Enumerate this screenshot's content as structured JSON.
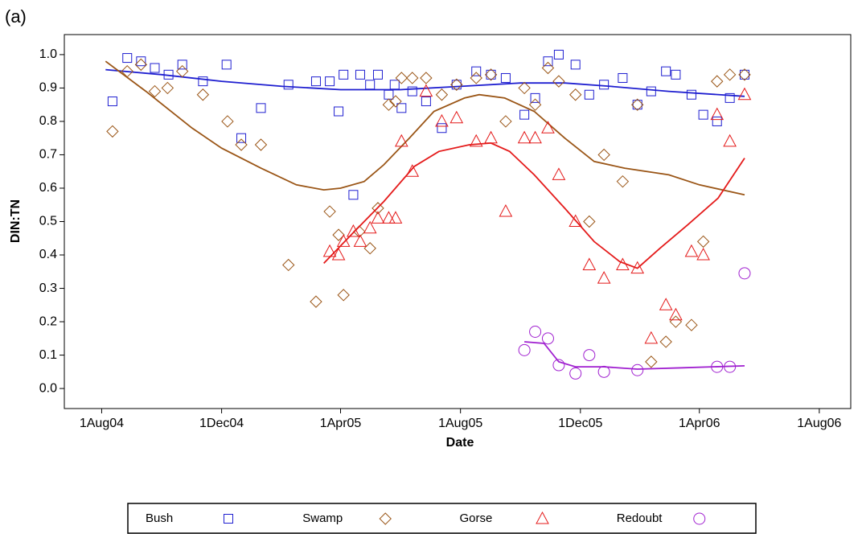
{
  "chart_data": {
    "type": "scatter",
    "panel_label": "(a)",
    "x_label": "Date",
    "y_label": "DIN:TN",
    "xlim": [
      "2004-06-24",
      "2006-09-02"
    ],
    "xticks": [
      {
        "value": "2004-08-01",
        "label": "1Aug04"
      },
      {
        "value": "2004-12-01",
        "label": "1Dec04"
      },
      {
        "value": "2005-04-01",
        "label": "1Apr05"
      },
      {
        "value": "2005-08-01",
        "label": "1Aug05"
      },
      {
        "value": "2005-12-01",
        "label": "1Dec05"
      },
      {
        "value": "2006-04-01",
        "label": "1Apr06"
      },
      {
        "value": "2006-08-01",
        "label": "1Aug06"
      }
    ],
    "ylim": [
      -0.06,
      1.06
    ],
    "yticks": [
      {
        "value": 0,
        "label": "0.0"
      },
      0.1,
      0.2,
      0.3,
      0.4,
      0.5,
      0.6,
      0.7,
      0.8,
      0.9,
      {
        "value": 1,
        "label": "1.0"
      }
    ],
    "legend": "bottom",
    "series": [
      {
        "name": "Bush",
        "color": "#1f1fd0",
        "marker": "square",
        "x": [
          "2004-08-12",
          "2004-08-27",
          "2004-09-10",
          "2004-09-24",
          "2004-10-08",
          "2004-10-22",
          "2004-11-12",
          "2004-12-06",
          "2004-12-21",
          "2005-01-10",
          "2005-02-07",
          "2005-03-07",
          "2005-03-21",
          "2005-03-30",
          "2005-04-04",
          "2005-04-14",
          "2005-04-21",
          "2005-05-01",
          "2005-05-09",
          "2005-05-20",
          "2005-05-26",
          "2005-06-02",
          "2005-06-13",
          "2005-06-27",
          "2005-07-13",
          "2005-07-28",
          "2005-08-17",
          "2005-09-01",
          "2005-09-16",
          "2005-10-05",
          "2005-10-16",
          "2005-10-29",
          "2005-11-09",
          "2005-11-26",
          "2005-12-10",
          "2005-12-25",
          "2006-01-13",
          "2006-01-28",
          "2006-02-11",
          "2006-02-26",
          "2006-03-08",
          "2006-03-24",
          "2006-04-05",
          "2006-04-19",
          "2006-05-02",
          "2006-05-17"
        ],
        "values": [
          0.86,
          0.99,
          0.98,
          0.96,
          0.94,
          0.97,
          0.92,
          0.97,
          0.75,
          0.84,
          0.91,
          0.92,
          0.92,
          0.83,
          0.94,
          0.58,
          0.94,
          0.91,
          0.94,
          0.88,
          0.91,
          0.84,
          0.89,
          0.86,
          0.78,
          0.91,
          0.95,
          0.94,
          0.93,
          0.82,
          0.87,
          0.98,
          1.0,
          0.97,
          0.88,
          0.91,
          0.93,
          0.85,
          0.89,
          0.95,
          0.94,
          0.88,
          0.82,
          0.8,
          0.87,
          0.94
        ],
        "fit_x": [
          "2004-08-05",
          "2004-10-01",
          "2004-12-01",
          "2005-02-01",
          "2005-04-01",
          "2005-06-01",
          "2005-08-01",
          "2005-10-01",
          "2005-11-15",
          "2006-01-01",
          "2006-03-01",
          "2006-05-17"
        ],
        "fit_values": [
          0.955,
          0.94,
          0.92,
          0.905,
          0.895,
          0.895,
          0.905,
          0.915,
          0.915,
          0.905,
          0.89,
          0.875
        ]
      },
      {
        "name": "Swamp",
        "color": "#9a5516",
        "marker": "diamond",
        "x": [
          "2004-08-12",
          "2004-08-27",
          "2004-09-10",
          "2004-09-24",
          "2004-10-07",
          "2004-10-22",
          "2004-11-12",
          "2004-12-07",
          "2004-12-21",
          "2005-01-10",
          "2005-02-07",
          "2005-03-07",
          "2005-03-21",
          "2005-03-30",
          "2005-04-04",
          "2005-04-20",
          "2005-05-01",
          "2005-05-09",
          "2005-05-20",
          "2005-05-27",
          "2005-06-02",
          "2005-06-13",
          "2005-06-27",
          "2005-07-13",
          "2005-07-28",
          "2005-08-17",
          "2005-09-01",
          "2005-09-16",
          "2005-10-05",
          "2005-10-16",
          "2005-10-29",
          "2005-11-09",
          "2005-11-26",
          "2005-12-10",
          "2005-12-25",
          "2006-01-13",
          "2006-01-28",
          "2006-02-11",
          "2006-02-26",
          "2006-03-08",
          "2006-03-24",
          "2006-04-05",
          "2006-04-19",
          "2006-05-02",
          "2006-05-17"
        ],
        "values": [
          0.77,
          0.95,
          0.97,
          0.89,
          0.9,
          0.95,
          0.88,
          0.8,
          0.73,
          0.73,
          0.37,
          0.26,
          0.53,
          0.46,
          0.28,
          0.47,
          0.42,
          0.54,
          0.85,
          0.86,
          0.93,
          0.93,
          0.93,
          0.88,
          0.91,
          0.93,
          0.94,
          0.8,
          0.9,
          0.85,
          0.96,
          0.92,
          0.88,
          0.5,
          0.7,
          0.62,
          0.85,
          0.08,
          0.14,
          0.2,
          0.19,
          0.44,
          0.92,
          0.94,
          0.94
        ],
        "fit_x": [
          "2004-08-05",
          "2004-09-15",
          "2004-11-01",
          "2004-12-01",
          "2005-01-10",
          "2005-02-15",
          "2005-03-15",
          "2005-04-01",
          "2005-04-25",
          "2005-05-15",
          "2005-06-10",
          "2005-07-05",
          "2005-08-05",
          "2005-08-20",
          "2005-09-15",
          "2005-10-15",
          "2005-11-15",
          "2005-12-15",
          "2006-01-15",
          "2006-03-01",
          "2006-04-01",
          "2006-05-17"
        ],
        "fit_values": [
          0.98,
          0.89,
          0.78,
          0.72,
          0.66,
          0.61,
          0.595,
          0.6,
          0.62,
          0.67,
          0.75,
          0.83,
          0.87,
          0.88,
          0.87,
          0.83,
          0.75,
          0.68,
          0.66,
          0.64,
          0.61,
          0.58
        ]
      },
      {
        "name": "Gorse",
        "color": "#e41a1a",
        "marker": "triangle",
        "x": [
          "2005-03-21",
          "2005-03-30",
          "2005-04-04",
          "2005-04-14",
          "2005-04-21",
          "2005-05-01",
          "2005-05-09",
          "2005-05-20",
          "2005-05-27",
          "2005-06-02",
          "2005-06-13",
          "2005-06-27",
          "2005-07-13",
          "2005-07-28",
          "2005-08-17",
          "2005-09-01",
          "2005-09-16",
          "2005-10-05",
          "2005-10-16",
          "2005-10-29",
          "2005-11-09",
          "2005-11-26",
          "2005-12-10",
          "2005-12-25",
          "2006-01-13",
          "2006-01-28",
          "2006-02-11",
          "2006-02-26",
          "2006-03-08",
          "2006-03-24",
          "2006-04-05",
          "2006-04-19",
          "2006-05-02",
          "2006-05-17"
        ],
        "values": [
          0.41,
          0.4,
          0.44,
          0.47,
          0.44,
          0.48,
          0.51,
          0.51,
          0.51,
          0.74,
          0.65,
          0.89,
          0.8,
          0.81,
          0.74,
          0.75,
          0.53,
          0.75,
          0.75,
          0.78,
          0.64,
          0.5,
          0.37,
          0.33,
          0.37,
          0.36,
          0.15,
          0.25,
          0.22,
          0.41,
          0.4,
          0.82,
          0.74,
          0.88
        ],
        "fit_x": [
          "2005-03-15",
          "2005-04-15",
          "2005-05-15",
          "2005-06-15",
          "2005-07-10",
          "2005-08-10",
          "2005-09-01",
          "2005-09-20",
          "2005-10-15",
          "2005-11-15",
          "2005-12-15",
          "2006-01-10",
          "2006-01-28",
          "2006-02-20",
          "2006-03-20",
          "2006-04-20",
          "2006-05-17"
        ],
        "fit_values": [
          0.375,
          0.47,
          0.56,
          0.665,
          0.71,
          0.73,
          0.735,
          0.71,
          0.64,
          0.54,
          0.44,
          0.38,
          0.36,
          0.42,
          0.49,
          0.57,
          0.69
        ]
      },
      {
        "name": "Redoubt",
        "color": "#a020d0",
        "marker": "circle",
        "x": [
          "2005-10-05",
          "2005-10-16",
          "2005-10-29",
          "2005-11-09",
          "2005-11-26",
          "2005-12-10",
          "2005-12-25",
          "2006-01-28",
          "2006-04-19",
          "2006-05-02",
          "2006-05-17"
        ],
        "values": [
          0.115,
          0.17,
          0.15,
          0.07,
          0.045,
          0.1,
          0.05,
          0.055,
          0.065,
          0.065,
          0.345
        ],
        "fit_x": [
          "2005-10-05",
          "2005-10-25",
          "2005-11-09",
          "2005-11-26",
          "2005-12-25",
          "2006-01-28",
          "2006-03-15",
          "2006-05-17"
        ],
        "fit_values": [
          0.14,
          0.135,
          0.08,
          0.065,
          0.065,
          0.058,
          0.062,
          0.068
        ]
      }
    ]
  }
}
